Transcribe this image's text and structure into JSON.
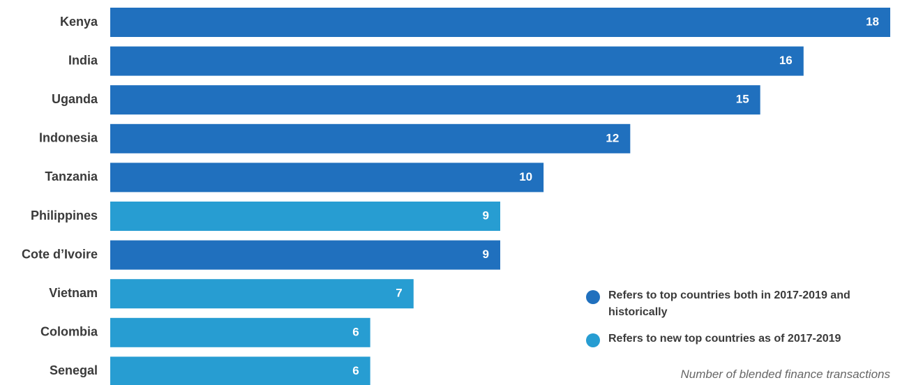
{
  "chart_data": {
    "type": "bar",
    "orientation": "horizontal",
    "categories": [
      "Kenya",
      "India",
      "Uganda",
      "Indonesia",
      "Tanzania",
      "Philippines",
      "Cote d’Ivoire",
      "Vietnam",
      "Colombia",
      "Senegal"
    ],
    "values": [
      18,
      16,
      15,
      12,
      10,
      9,
      9,
      7,
      6,
      6
    ],
    "groups": [
      "both",
      "both",
      "both",
      "both",
      "both",
      "new",
      "both",
      "new",
      "new",
      "new"
    ],
    "xlabel": "Number of blended finance transactions",
    "xlim": [
      0,
      18
    ],
    "grid": false,
    "legend": {
      "position": "bottom-right",
      "items": [
        {
          "key": "both",
          "label": "Refers to top countries both in 2017-2019 and historically",
          "color": "#2070be"
        },
        {
          "key": "new",
          "label": "Refers to new top countries as of 2017-2019",
          "color": "#279dd2"
        }
      ]
    },
    "colors": {
      "both": "#2070be",
      "new": "#279dd2"
    }
  }
}
